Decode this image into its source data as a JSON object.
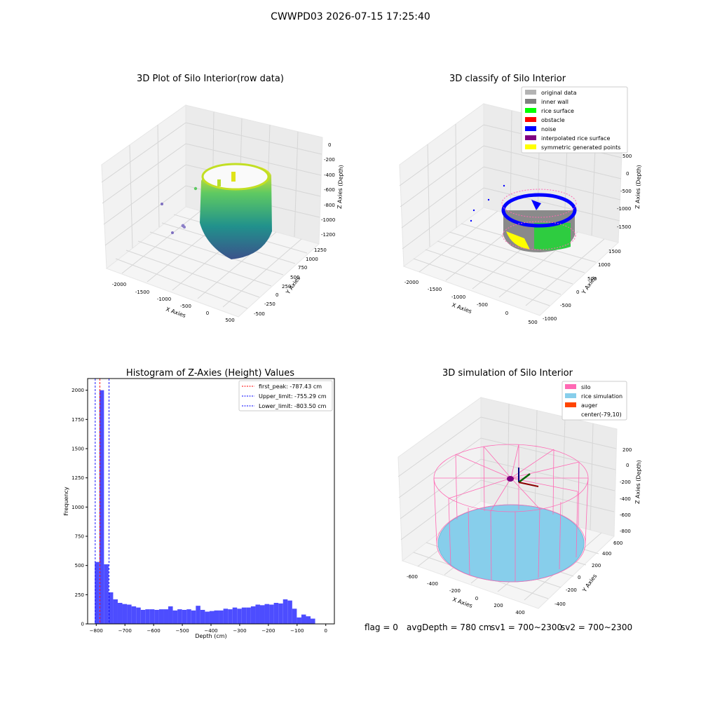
{
  "suptitle": "CWWPD03 2026-07-15 17:25:40",
  "colors": {
    "grid_pane": "#f2f2f2",
    "grid_line": "#d6d6d6",
    "viridis_low": "#3b528b",
    "viridis_mid": "#21918c",
    "viridis_high": "#fde725",
    "hist_bar": "#4d4dff",
    "peak_line": "#ff0000",
    "limit_line": "#0000ff",
    "silo": "#ff69b4",
    "rice": "#87ceeb",
    "auger": "#ff4500"
  },
  "chart_data": [
    {
      "type": "scatter",
      "title": "3D Plot of Silo Interior(row data)",
      "xlabel": "X Axies",
      "ylabel": "Y Axies",
      "zlabel": "Z Axies (Depth)",
      "xticks": [
        "-2000",
        "-1500",
        "-1000",
        "-500",
        "0",
        "500"
      ],
      "yticks": [
        "-500",
        "-250",
        "0",
        "250",
        "500",
        "750",
        "1000",
        "1250"
      ],
      "zticks": [
        "0",
        "-200",
        "-400",
        "-600",
        "-800",
        "-1000",
        "-1200"
      ],
      "colormap": "viridis",
      "grid": true
    },
    {
      "type": "scatter",
      "title": "3D classify of Silo Interior",
      "xlabel": "X Axies",
      "ylabel": "Y Axies",
      "zlabel": "Z Axies (Depth)",
      "xticks": [
        "-2000",
        "-1500",
        "-1000",
        "-500",
        "0",
        "500"
      ],
      "yticks": [
        "-1000",
        "-500",
        "0",
        "500",
        "1000",
        "1500"
      ],
      "zticks": [
        "500",
        "0",
        "-500",
        "-1000",
        "-1500"
      ],
      "legend_position": "top-right",
      "legend": [
        {
          "label": "original data",
          "color": "#b3b3b3"
        },
        {
          "label": "inner wall",
          "color": "#808080"
        },
        {
          "label": "rice surface",
          "color": "#00ff00"
        },
        {
          "label": "obstacle",
          "color": "#ff0000"
        },
        {
          "label": "noise",
          "color": "#0000ff"
        },
        {
          "label": "interpolated rice surface",
          "color": "#800080"
        },
        {
          "label": "symmetric generated points",
          "color": "#ffff00"
        }
      ],
      "grid": true
    },
    {
      "type": "bar",
      "title": "Histogram of Z-Axies (Height) Values",
      "xlabel": "Depth (cm)",
      "ylabel": "Frequency",
      "xlim": [
        -830,
        30
      ],
      "ylim": [
        0,
        2100
      ],
      "xticks": [
        -800,
        -700,
        -600,
        -500,
        -400,
        -300,
        -200,
        -100,
        0
      ],
      "yticks": [
        0,
        250,
        500,
        750,
        1000,
        1250,
        1500,
        1750,
        2000
      ],
      "bin_width": 16,
      "bins_start": [
        -805,
        -789,
        -773,
        -757,
        -741,
        -725,
        -709,
        -693,
        -677,
        -661,
        -645,
        -629,
        -613,
        -597,
        -581,
        -565,
        -549,
        -533,
        -517,
        -501,
        -485,
        -469,
        -453,
        -437,
        -421,
        -405,
        -389,
        -373,
        -357,
        -341,
        -325,
        -309,
        -293,
        -277,
        -261,
        -245,
        -229,
        -213,
        -197,
        -181,
        -165,
        -149,
        -133,
        -117,
        -101,
        -85,
        -69,
        -53,
        -37,
        -21
      ],
      "values": [
        530,
        2000,
        510,
        270,
        210,
        180,
        170,
        165,
        150,
        140,
        120,
        125,
        125,
        120,
        125,
        125,
        150,
        115,
        125,
        120,
        125,
        115,
        155,
        120,
        105,
        110,
        115,
        115,
        130,
        125,
        140,
        130,
        140,
        140,
        150,
        165,
        160,
        170,
        165,
        180,
        175,
        210,
        200,
        130,
        55,
        80,
        65,
        45,
        0,
        0
      ],
      "vlines": [
        {
          "label": "first_peak: -787.43 cm",
          "x": -787.43,
          "color": "#ff0000"
        },
        {
          "label": "Upper_limit: -755.29 cm",
          "x": -755.29,
          "color": "#0000ff"
        },
        {
          "label": "Lower_limit: -803.50 cm",
          "x": -803.5,
          "color": "#0000ff"
        }
      ],
      "legend_position": "top-right",
      "grid": false
    },
    {
      "type": "scatter",
      "title": "3D simulation of Silo Interior",
      "xlabel": "X Axies",
      "ylabel": "Y Axies",
      "zlabel": "Z Axies (Depth)",
      "xticks": [
        "-600",
        "-400",
        "-200",
        "0",
        "200",
        "400"
      ],
      "yticks": [
        "-400",
        "-200",
        "0",
        "200",
        "400",
        "600"
      ],
      "zticks": [
        "200",
        "0",
        "-200",
        "-400",
        "-600",
        "-800"
      ],
      "legend_position": "top-right",
      "legend": [
        {
          "label": "silo",
          "color": "#ff69b4"
        },
        {
          "label": "rice simulation",
          "color": "#87ceeb"
        },
        {
          "label": "auger",
          "color": "#ff4500"
        },
        {
          "label": "center(-79,10)",
          "color": "#ffffff"
        }
      ],
      "grid": true
    }
  ],
  "status": {
    "flag": "flag = 0",
    "avg": "avgDepth = 780 cm",
    "sv1": "sv1 = 700~2300",
    "sv2": "sv2 = 700~2300"
  }
}
